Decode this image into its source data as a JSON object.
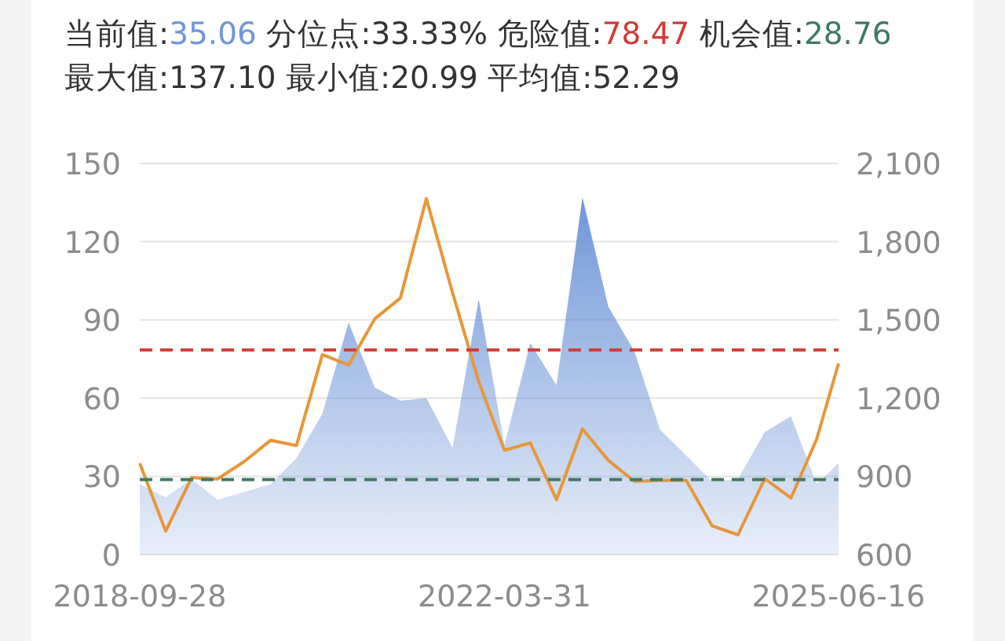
{
  "chart_data": {
    "type": "area",
    "annotations": [
      "当前值:35.06",
      "分位点:33.33%",
      "危险值:78.47",
      "机会值:28.76",
      "最大值:137.10",
      "最小值:20.99",
      "平均值:52.29"
    ],
    "x": [
      "2018-09-28",
      "2018-12-28",
      "2019-03-29",
      "2019-06-28",
      "2019-09-30",
      "2019-12-31",
      "2020-03-31",
      "2020-06-30",
      "2020-09-30",
      "2020-12-31",
      "2021-03-31",
      "2021-06-30",
      "2021-09-30",
      "2021-12-31",
      "2022-03-31",
      "2022-06-30",
      "2022-09-30",
      "2022-12-30",
      "2023-03-31",
      "2023-06-30",
      "2023-09-28",
      "2023-12-29",
      "2024-03-29",
      "2024-06-28",
      "2024-09-30",
      "2024-12-31",
      "2025-03-31",
      "2025-06-16"
    ],
    "series": [
      {
        "color": "#6f96d8",
        "values": [
          27,
          22,
          29,
          21,
          24,
          27,
          37,
          54,
          89,
          64,
          59,
          60,
          41,
          98,
          42,
          81,
          65,
          137,
          95,
          78,
          48,
          38,
          28,
          29,
          47,
          53,
          27,
          35
        ]
      },
      {
        "type": "line",
        "axis": "y2",
        "color": "#e8963a",
        "values": [
          950,
          690,
          895,
          890,
          957,
          1038,
          1018,
          1367,
          1327,
          1504,
          1584,
          1965,
          1604,
          1263,
          1000,
          1028,
          811,
          1082,
          961,
          881,
          885,
          885,
          710,
          676,
          891,
          817,
          1042,
          1333
        ]
      }
    ],
    "xlim": [
      "2018-09-28",
      "2025-06-16"
    ],
    "xticks": [
      "2018-09-28",
      "2022-03-31",
      "2025-06-16"
    ],
    "ylim": [
      0,
      150
    ],
    "yticks": [
      0,
      30,
      60,
      90,
      120,
      150
    ],
    "y2lim": [
      600,
      2100
    ],
    "y2ticks": [
      {
        "value": 600,
        "label": "600"
      },
      {
        "value": 900,
        "label": "900"
      },
      {
        "value": 1200,
        "label": "1,200"
      },
      {
        "value": 1500,
        "label": "1,500"
      },
      {
        "value": 1800,
        "label": "1,800"
      },
      {
        "value": 2100,
        "label": "2,100"
      }
    ],
    "ref_lines": [
      {
        "axis": "y",
        "value": 78.47,
        "color": "#d23a34",
        "line_style": "dashed"
      },
      {
        "axis": "y",
        "value": 28.76,
        "color": "#3f7a63",
        "line_style": "dashed"
      }
    ],
    "grid": "y"
  }
}
